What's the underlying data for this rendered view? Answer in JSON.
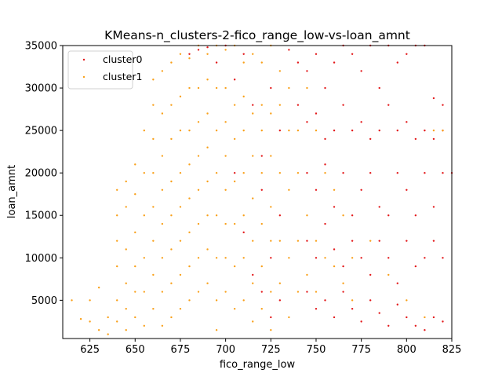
{
  "chart_data": {
    "type": "scatter",
    "title": "KMeans-n_clusters-2-fico_range_low-vs-loan_amnt",
    "xlabel": "fico_range_low",
    "ylabel": "loan_amnt",
    "xlim": [
      610,
      825
    ],
    "ylim": [
      500,
      35000
    ],
    "xticks": [
      625,
      650,
      675,
      700,
      725,
      750,
      775,
      800,
      825
    ],
    "yticks": [
      5000,
      10000,
      15000,
      20000,
      25000,
      30000,
      35000
    ],
    "grid": false,
    "legend_position": "top-left",
    "colors": {
      "cluster0": "#e31a1c",
      "cluster1": "#f9a11b"
    },
    "series": [
      {
        "name": "cluster0",
        "points": [
          [
            735,
            34500
          ],
          [
            740,
            33000
          ],
          [
            745,
            32000
          ],
          [
            750,
            34000
          ],
          [
            755,
            30000
          ],
          [
            760,
            33000
          ],
          [
            765,
            35000
          ],
          [
            770,
            34000
          ],
          [
            775,
            32000
          ],
          [
            780,
            35000
          ],
          [
            785,
            30000
          ],
          [
            790,
            35000
          ],
          [
            795,
            33000
          ],
          [
            800,
            34000
          ],
          [
            805,
            35000
          ],
          [
            810,
            35000
          ],
          [
            740,
            28000
          ],
          [
            745,
            26000
          ],
          [
            750,
            27000
          ],
          [
            755,
            24000
          ],
          [
            760,
            25000
          ],
          [
            765,
            28000
          ],
          [
            770,
            25000
          ],
          [
            775,
            26000
          ],
          [
            780,
            24000
          ],
          [
            785,
            25000
          ],
          [
            790,
            28000
          ],
          [
            795,
            25000
          ],
          [
            800,
            26000
          ],
          [
            805,
            24000
          ],
          [
            810,
            25000
          ],
          [
            815,
            28800
          ],
          [
            820,
            28000
          ],
          [
            825,
            20000
          ],
          [
            820,
            25000
          ],
          [
            815,
            24000
          ],
          [
            745,
            20000
          ],
          [
            750,
            18000
          ],
          [
            755,
            21000
          ],
          [
            760,
            16000
          ],
          [
            765,
            20000
          ],
          [
            770,
            15000
          ],
          [
            775,
            18000
          ],
          [
            780,
            20000
          ],
          [
            785,
            16000
          ],
          [
            790,
            15000
          ],
          [
            795,
            20000
          ],
          [
            800,
            18000
          ],
          [
            805,
            15000
          ],
          [
            810,
            20000
          ],
          [
            815,
            16000
          ],
          [
            820,
            20000
          ],
          [
            745,
            12000
          ],
          [
            750,
            10000
          ],
          [
            755,
            14000
          ],
          [
            760,
            11000
          ],
          [
            765,
            9000
          ],
          [
            770,
            12000
          ],
          [
            775,
            10000
          ],
          [
            780,
            8000
          ],
          [
            785,
            12000
          ],
          [
            790,
            10000
          ],
          [
            795,
            7000
          ],
          [
            800,
            12000
          ],
          [
            805,
            9000
          ],
          [
            810,
            10000
          ],
          [
            815,
            12000
          ],
          [
            820,
            10000
          ],
          [
            745,
            6000
          ],
          [
            750,
            4000
          ],
          [
            755,
            5000
          ],
          [
            760,
            3000
          ],
          [
            765,
            6000
          ],
          [
            770,
            4000
          ],
          [
            775,
            2500
          ],
          [
            780,
            5000
          ],
          [
            785,
            3500
          ],
          [
            790,
            2000
          ],
          [
            795,
            4500
          ],
          [
            800,
            3000
          ],
          [
            805,
            2000
          ],
          [
            810,
            1500
          ],
          [
            815,
            3000
          ],
          [
            820,
            2500
          ],
          [
            725,
            30000
          ],
          [
            730,
            25000
          ],
          [
            720,
            22000
          ],
          [
            715,
            28000
          ],
          [
            710,
            34000
          ],
          [
            705,
            31000
          ],
          [
            700,
            35000
          ],
          [
            695,
            33000
          ],
          [
            690,
            34800
          ],
          [
            685,
            34500
          ],
          [
            680,
            34000
          ],
          [
            730,
            15000
          ],
          [
            725,
            10000
          ],
          [
            720,
            18000
          ],
          [
            715,
            8000
          ],
          [
            710,
            13000
          ],
          [
            705,
            20000
          ],
          [
            730,
            5000
          ],
          [
            725,
            3000
          ],
          [
            720,
            6000
          ]
        ]
      },
      {
        "name": "cluster1",
        "points": [
          [
            615,
            5000
          ],
          [
            620,
            2800
          ],
          [
            625,
            5000
          ],
          [
            625,
            2500
          ],
          [
            630,
            6500
          ],
          [
            630,
            1500
          ],
          [
            635,
            3000
          ],
          [
            635,
            1000
          ],
          [
            640,
            18000
          ],
          [
            640,
            15000
          ],
          [
            640,
            12000
          ],
          [
            640,
            9000
          ],
          [
            640,
            5000
          ],
          [
            640,
            2500
          ],
          [
            645,
            19000
          ],
          [
            645,
            16000
          ],
          [
            645,
            11000
          ],
          [
            645,
            7000
          ],
          [
            645,
            4000
          ],
          [
            645,
            1500
          ],
          [
            650,
            21000
          ],
          [
            650,
            17500
          ],
          [
            650,
            13000
          ],
          [
            650,
            9000
          ],
          [
            650,
            6000
          ],
          [
            650,
            3000
          ],
          [
            655,
            25000
          ],
          [
            655,
            20000
          ],
          [
            655,
            15000
          ],
          [
            655,
            10000
          ],
          [
            655,
            6000
          ],
          [
            655,
            2000
          ],
          [
            660,
            31000
          ],
          [
            660,
            28000
          ],
          [
            660,
            24000
          ],
          [
            660,
            20000
          ],
          [
            660,
            16000
          ],
          [
            660,
            12000
          ],
          [
            660,
            8000
          ],
          [
            660,
            4000
          ],
          [
            665,
            32000
          ],
          [
            665,
            27000
          ],
          [
            665,
            22000
          ],
          [
            665,
            18000
          ],
          [
            665,
            14000
          ],
          [
            665,
            10000
          ],
          [
            665,
            6000
          ],
          [
            665,
            2000
          ],
          [
            670,
            33000
          ],
          [
            670,
            28000
          ],
          [
            670,
            24000
          ],
          [
            670,
            19000
          ],
          [
            670,
            15000
          ],
          [
            670,
            11000
          ],
          [
            670,
            7000
          ],
          [
            670,
            3000
          ],
          [
            675,
            34000
          ],
          [
            675,
            29000
          ],
          [
            675,
            25000
          ],
          [
            675,
            20000
          ],
          [
            675,
            16000
          ],
          [
            675,
            12000
          ],
          [
            675,
            8000
          ],
          [
            675,
            4000
          ],
          [
            680,
            33500
          ],
          [
            680,
            30000
          ],
          [
            680,
            25000
          ],
          [
            680,
            21000
          ],
          [
            680,
            17000
          ],
          [
            680,
            13000
          ],
          [
            680,
            9000
          ],
          [
            680,
            5000
          ],
          [
            685,
            35000
          ],
          [
            685,
            30000
          ],
          [
            685,
            26000
          ],
          [
            685,
            22000
          ],
          [
            685,
            18000
          ],
          [
            685,
            14000
          ],
          [
            685,
            10000
          ],
          [
            685,
            6000
          ],
          [
            690,
            34000
          ],
          [
            690,
            31000
          ],
          [
            690,
            27000
          ],
          [
            690,
            23000
          ],
          [
            690,
            19000
          ],
          [
            690,
            15000
          ],
          [
            690,
            11000
          ],
          [
            690,
            7000
          ],
          [
            695,
            35000
          ],
          [
            695,
            30000
          ],
          [
            695,
            25000
          ],
          [
            695,
            20000
          ],
          [
            695,
            15000
          ],
          [
            695,
            10000
          ],
          [
            695,
            5000
          ],
          [
            695,
            1500
          ],
          [
            700,
            34500
          ],
          [
            700,
            30000
          ],
          [
            700,
            26000
          ],
          [
            700,
            22000
          ],
          [
            700,
            18000
          ],
          [
            700,
            14000
          ],
          [
            700,
            10000
          ],
          [
            700,
            6000
          ],
          [
            705,
            35000
          ],
          [
            705,
            28000
          ],
          [
            705,
            24000
          ],
          [
            705,
            19000
          ],
          [
            705,
            14000
          ],
          [
            705,
            9000
          ],
          [
            705,
            4000
          ],
          [
            710,
            33000
          ],
          [
            710,
            29000
          ],
          [
            710,
            25000
          ],
          [
            710,
            20000
          ],
          [
            710,
            15000
          ],
          [
            710,
            10000
          ],
          [
            710,
            5000
          ],
          [
            715,
            34000
          ],
          [
            715,
            27000
          ],
          [
            715,
            22000
          ],
          [
            715,
            17000
          ],
          [
            715,
            12000
          ],
          [
            715,
            7000
          ],
          [
            715,
            2500
          ],
          [
            720,
            33000
          ],
          [
            720,
            28000
          ],
          [
            720,
            25000
          ],
          [
            720,
            20000
          ],
          [
            720,
            14000
          ],
          [
            720,
            9000
          ],
          [
            720,
            4000
          ],
          [
            725,
            35000
          ],
          [
            725,
            27000
          ],
          [
            725,
            22000
          ],
          [
            725,
            16000
          ],
          [
            725,
            12000
          ],
          [
            725,
            6000
          ],
          [
            725,
            1500
          ],
          [
            730,
            32000
          ],
          [
            730,
            28000
          ],
          [
            730,
            20000
          ],
          [
            730,
            12000
          ],
          [
            730,
            7000
          ],
          [
            735,
            30000
          ],
          [
            735,
            25000
          ],
          [
            735,
            18000
          ],
          [
            735,
            10000
          ],
          [
            735,
            3000
          ],
          [
            740,
            25000
          ],
          [
            740,
            20000
          ],
          [
            740,
            12000
          ],
          [
            740,
            6000
          ],
          [
            745,
            30000
          ],
          [
            745,
            15000
          ],
          [
            745,
            8000
          ],
          [
            750,
            25000
          ],
          [
            750,
            12000
          ],
          [
            750,
            6000
          ],
          [
            755,
            20000
          ],
          [
            755,
            10000
          ],
          [
            760,
            18000
          ],
          [
            760,
            9000
          ],
          [
            765,
            15000
          ],
          [
            765,
            7000
          ],
          [
            770,
            10000
          ],
          [
            770,
            5000
          ],
          [
            780,
            12000
          ],
          [
            790,
            8000
          ],
          [
            800,
            5000
          ],
          [
            810,
            3000
          ],
          [
            815,
            25000
          ],
          [
            820,
            25000
          ]
        ]
      }
    ]
  }
}
